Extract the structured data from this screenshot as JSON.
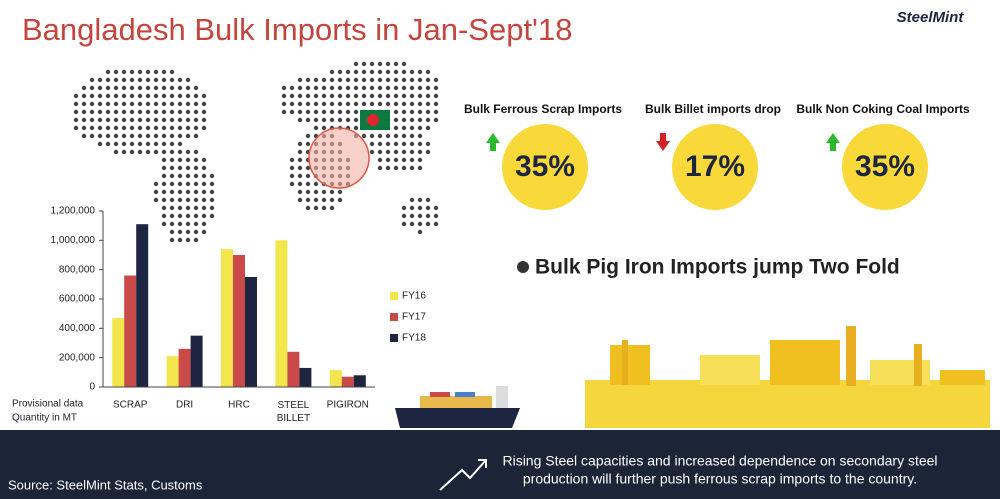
{
  "header": {
    "title": "Bangladesh Bulk Imports in Jan-Sept'18",
    "logo": "SteelMint"
  },
  "stats": [
    {
      "label": "Bulk Ferrous Scrap Imports",
      "value": "35%",
      "direction": "up"
    },
    {
      "label": "Bulk Billet imports drop",
      "value": "17%",
      "direction": "down"
    },
    {
      "label": "Bulk Non Coking Coal Imports",
      "value": "35%",
      "direction": "up"
    }
  ],
  "headline": "Bulk Pig Iron Imports jump Two Fold",
  "chart_data": {
    "type": "bar",
    "categories": [
      "SCRAP",
      "DRI",
      "HRC",
      "STEEL BILLET",
      "PIGIRON"
    ],
    "series": [
      {
        "name": "FY16",
        "color": "#f3e54c",
        "values": [
          470000,
          210000,
          940000,
          1000000,
          115000
        ]
      },
      {
        "name": "FY17",
        "color": "#c94a48",
        "values": [
          760000,
          260000,
          900000,
          240000,
          70000
        ]
      },
      {
        "name": "FY18",
        "color": "#1d2540",
        "values": [
          1110000,
          350000,
          750000,
          130000,
          80000
        ]
      }
    ],
    "ylim": [
      0,
      1200000
    ],
    "yticks": [
      0,
      {
        "value": 200000,
        "label": "200,000"
      },
      {
        "value": 400000,
        "label": "400,000"
      },
      {
        "value": 600000,
        "label": "600,000"
      },
      {
        "value": 800000,
        "label": "800,000"
      },
      {
        "value": 1000000,
        "label": "1,000,000"
      },
      {
        "value": 1200000,
        "label": "1,200,000"
      }
    ],
    "axis_note": [
      "Provisional data",
      "Quantity in MT"
    ]
  },
  "footer": {
    "source": "Source: SteelMint Stats, Customs",
    "message": [
      "Rising Steel capacities and increased dependence on secondary steel",
      "production will further push ferrous scrap imports to the country."
    ]
  }
}
